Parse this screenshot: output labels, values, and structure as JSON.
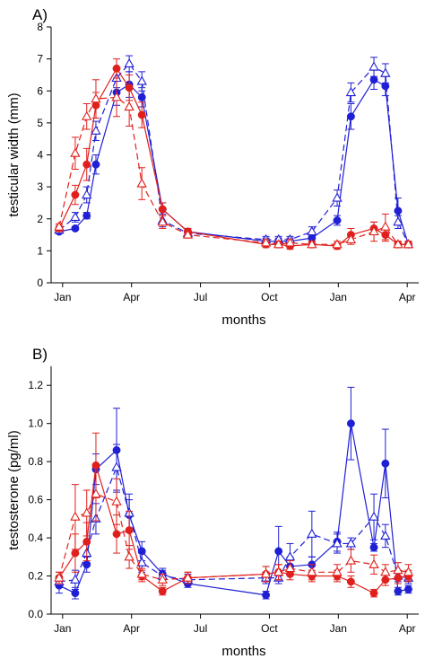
{
  "colors": {
    "blue": "#1f1fd6",
    "red": "#e0201c"
  },
  "chart_data": [
    {
      "type": "line",
      "title": "A)",
      "xlabel": "months",
      "ylabel": "testicular width (mm)",
      "ylim": [
        0,
        8
      ],
      "yticks": [
        0,
        1,
        2,
        3,
        4,
        5,
        6,
        7,
        8
      ],
      "xlim": [
        0,
        14.7
      ],
      "xticks": [
        {
          "x": 0.5,
          "label": "Jan"
        },
        {
          "x": 3.5,
          "label": "Apr"
        },
        {
          "x": 6.5,
          "label": "Jul"
        },
        {
          "x": 9.5,
          "label": "Oct"
        },
        {
          "x": 12.5,
          "label": "Jan"
        },
        {
          "x": 15.5,
          "label": "Apr"
        }
      ],
      "series": [
        {
          "color": "blue",
          "dash": false,
          "marker": "filled-circle",
          "x": [
            0.35,
            1.05,
            1.55,
            1.95,
            2.85,
            3.4,
            3.95,
            4.85,
            5.95,
            9.35,
            9.9,
            10.4,
            11.35,
            12.45,
            13.05,
            14.05,
            14.55,
            15.1,
            15.55
          ],
          "y": [
            1.6,
            1.7,
            2.1,
            3.7,
            5.95,
            6.2,
            5.8,
            2.3,
            1.6,
            1.3,
            1.3,
            1.3,
            1.4,
            1.95,
            5.2,
            6.35,
            6.15,
            2.25,
            1.2
          ],
          "err": [
            0.05,
            0.05,
            0.1,
            0.3,
            0.4,
            0.4,
            0.3,
            0.2,
            0.1,
            0.1,
            0.1,
            0.1,
            0.1,
            0.15,
            0.4,
            0.3,
            0.3,
            0.4,
            0.1
          ]
        },
        {
          "color": "blue",
          "dash": true,
          "marker": "open-triangle",
          "x": [
            0.35,
            1.05,
            1.55,
            1.95,
            2.85,
            3.4,
            3.95,
            4.85,
            5.95,
            9.35,
            9.9,
            10.4,
            11.35,
            12.45,
            13.05,
            14.05,
            14.55,
            15.1,
            15.55
          ],
          "y": [
            1.65,
            2.05,
            2.75,
            4.75,
            6.4,
            6.85,
            6.3,
            1.95,
            1.55,
            1.35,
            1.35,
            1.35,
            1.6,
            2.65,
            5.95,
            6.75,
            6.55,
            1.9,
            1.2
          ],
          "err": [
            0.1,
            0.15,
            0.25,
            0.3,
            0.3,
            0.25,
            0.3,
            0.2,
            0.1,
            0.1,
            0.1,
            0.1,
            0.15,
            0.25,
            0.3,
            0.3,
            0.3,
            0.2,
            0.1
          ]
        },
        {
          "color": "red",
          "dash": false,
          "marker": "filled-circle",
          "x": [
            0.35,
            1.05,
            1.55,
            1.95,
            2.85,
            3.4,
            3.95,
            4.85,
            5.95,
            9.35,
            9.9,
            10.4,
            11.35,
            12.45,
            13.05,
            14.05,
            14.55,
            15.1,
            15.55
          ],
          "y": [
            1.7,
            2.75,
            3.7,
            5.55,
            6.7,
            6.1,
            5.25,
            2.3,
            1.6,
            1.2,
            1.2,
            1.15,
            1.2,
            1.15,
            1.5,
            1.7,
            1.5,
            1.2,
            1.2
          ],
          "err": [
            0.1,
            0.3,
            0.5,
            0.4,
            0.3,
            0.4,
            0.4,
            0.2,
            0.1,
            0.1,
            0.1,
            0.1,
            0.1,
            0.1,
            0.2,
            0.2,
            0.2,
            0.1,
            0.1
          ]
        },
        {
          "color": "red",
          "dash": true,
          "marker": "open-triangle",
          "x": [
            0.35,
            1.05,
            1.55,
            1.95,
            2.85,
            3.4,
            3.95,
            4.85,
            5.95,
            9.35,
            9.9,
            10.4,
            11.35,
            12.45,
            13.05,
            14.05,
            14.55,
            15.1,
            15.55
          ],
          "y": [
            1.75,
            4.05,
            5.2,
            5.75,
            5.8,
            5.5,
            3.1,
            1.9,
            1.5,
            1.25,
            1.2,
            1.25,
            1.2,
            1.2,
            1.35,
            1.6,
            1.75,
            1.2,
            1.2
          ],
          "err": [
            0.1,
            0.5,
            0.4,
            0.6,
            0.6,
            0.6,
            0.5,
            0.2,
            0.1,
            0.1,
            0.1,
            0.1,
            0.1,
            0.1,
            0.15,
            0.3,
            0.4,
            0.1,
            0.1
          ]
        }
      ]
    },
    {
      "type": "line",
      "title": "B)",
      "xlabel": "months",
      "ylabel": "testosterone (pg/ml)",
      "ylim": [
        0,
        1.3
      ],
      "yticks": [
        0.0,
        0.2,
        0.4,
        0.6,
        0.8,
        1.0,
        1.2
      ],
      "xlim": [
        0,
        14.7
      ],
      "xticks": [
        {
          "x": 0.5,
          "label": "Jan"
        },
        {
          "x": 3.5,
          "label": "Apr"
        },
        {
          "x": 6.5,
          "label": "Jul"
        },
        {
          "x": 9.5,
          "label": "Oct"
        },
        {
          "x": 12.5,
          "label": "Jan"
        },
        {
          "x": 15.5,
          "label": "Apr"
        }
      ],
      "series": [
        {
          "color": "blue",
          "dash": false,
          "marker": "filled-circle",
          "x": [
            0.35,
            1.05,
            1.55,
            1.95,
            2.85,
            3.4,
            3.95,
            4.85,
            5.95,
            9.35,
            9.9,
            10.4,
            11.35,
            12.45,
            13.05,
            14.05,
            14.55,
            15.1,
            15.55
          ],
          "y": [
            0.15,
            0.11,
            0.26,
            0.76,
            0.86,
            0.52,
            0.33,
            0.21,
            0.16,
            0.1,
            0.33,
            0.25,
            0.26,
            0.38,
            1.0,
            0.35,
            0.79,
            0.12,
            0.13
          ],
          "err": [
            0.04,
            0.03,
            0.04,
            0.08,
            0.22,
            0.08,
            0.05,
            0.03,
            0.02,
            0.02,
            0.13,
            0.05,
            0.04,
            0.05,
            0.19,
            0.02,
            0.18,
            0.02,
            0.02
          ]
        },
        {
          "color": "blue",
          "dash": true,
          "marker": "open-triangle",
          "x": [
            0.35,
            1.05,
            1.55,
            1.95,
            2.85,
            3.4,
            3.95,
            4.85,
            5.95,
            9.35,
            9.9,
            10.4,
            11.35,
            12.45,
            13.05,
            14.05,
            14.55,
            15.1,
            15.55
          ],
          "y": [
            0.17,
            0.18,
            0.32,
            0.5,
            0.77,
            0.53,
            0.27,
            0.2,
            0.18,
            0.19,
            0.19,
            0.3,
            0.42,
            0.37,
            0.37,
            0.51,
            0.41,
            0.2,
            0.19
          ],
          "err": [
            0.03,
            0.05,
            0.05,
            0.08,
            0.12,
            0.1,
            0.05,
            0.03,
            0.03,
            0.03,
            0.03,
            0.07,
            0.12,
            0.05,
            0.03,
            0.12,
            0.06,
            0.03,
            0.03
          ]
        },
        {
          "color": "red",
          "dash": false,
          "marker": "filled-circle",
          "x": [
            0.35,
            1.05,
            1.55,
            1.95,
            2.85,
            3.4,
            3.95,
            4.85,
            5.95,
            9.35,
            9.9,
            10.4,
            11.35,
            12.45,
            13.05,
            14.05,
            14.55,
            15.1,
            15.55
          ],
          "y": [
            0.19,
            0.32,
            0.38,
            0.78,
            0.42,
            0.44,
            0.2,
            0.12,
            0.19,
            0.21,
            0.22,
            0.21,
            0.2,
            0.2,
            0.17,
            0.11,
            0.18,
            0.19,
            0.2
          ],
          "err": [
            0.03,
            0.1,
            0.1,
            0.17,
            0.1,
            0.1,
            0.03,
            0.02,
            0.03,
            0.04,
            0.04,
            0.03,
            0.03,
            0.03,
            0.03,
            0.02,
            0.03,
            0.03,
            0.03
          ]
        },
        {
          "color": "red",
          "dash": true,
          "marker": "open-triangle",
          "x": [
            0.35,
            1.05,
            1.55,
            1.95,
            2.85,
            3.4,
            3.95,
            4.85,
            5.95,
            9.35,
            9.9,
            10.4,
            11.35,
            12.45,
            13.05,
            14.05,
            14.55,
            15.1,
            15.55
          ],
          "y": [
            0.19,
            0.51,
            0.53,
            0.63,
            0.59,
            0.3,
            0.21,
            0.18,
            0.19,
            0.21,
            0.22,
            0.24,
            0.22,
            0.22,
            0.28,
            0.26,
            0.22,
            0.23,
            0.22
          ],
          "err": [
            0.03,
            0.17,
            0.12,
            0.14,
            0.12,
            0.06,
            0.03,
            0.03,
            0.03,
            0.04,
            0.04,
            0.04,
            0.04,
            0.04,
            0.06,
            0.05,
            0.04,
            0.04,
            0.04
          ]
        }
      ]
    }
  ]
}
